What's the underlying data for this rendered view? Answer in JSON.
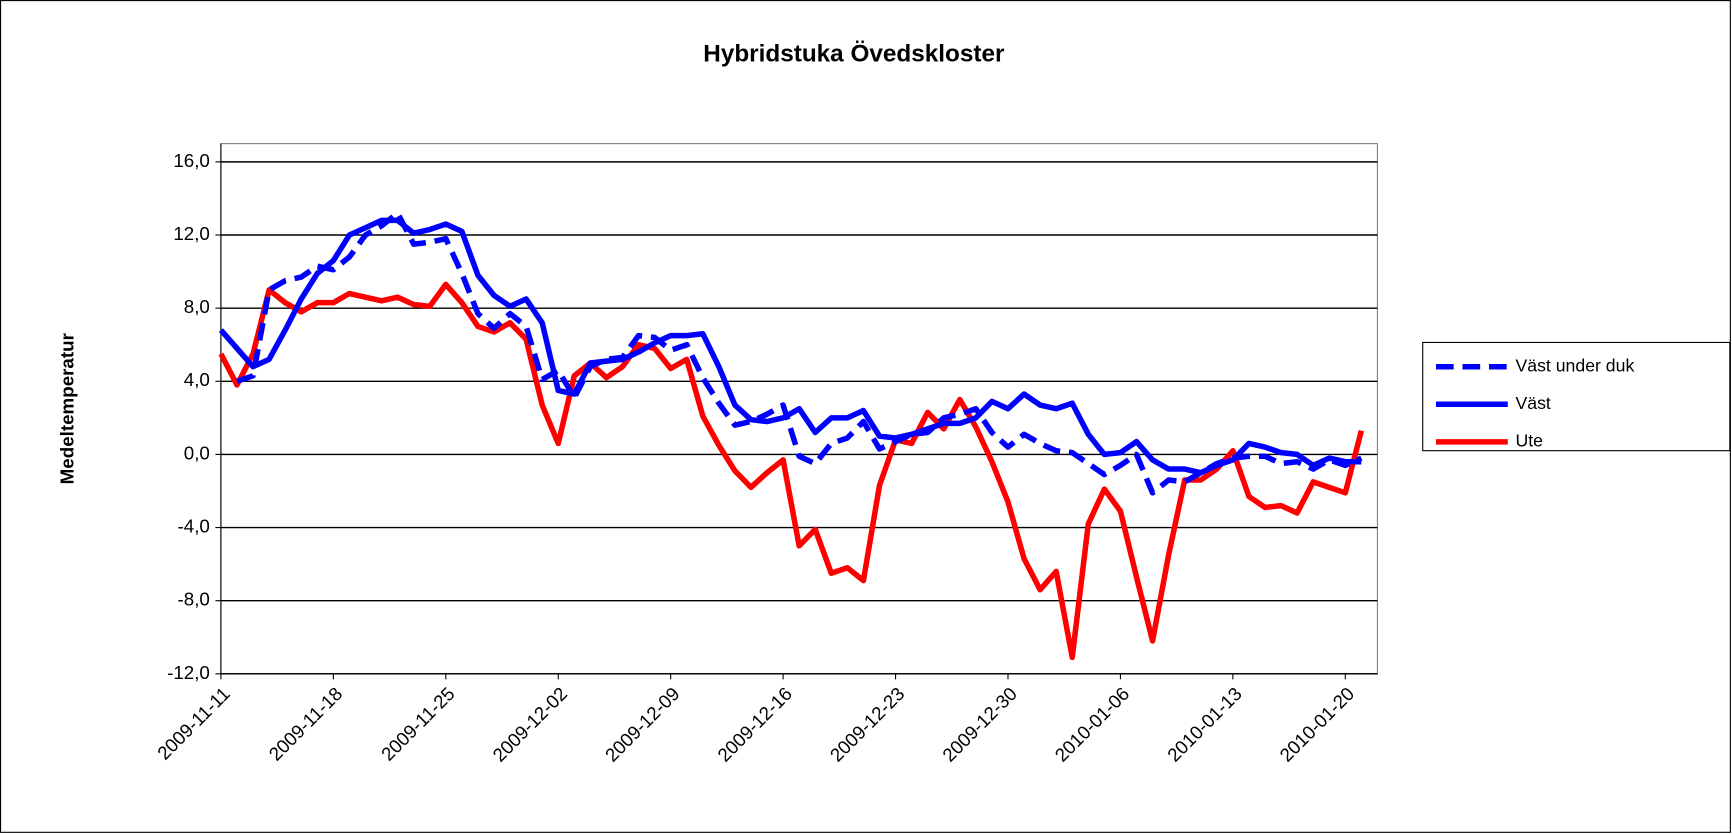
{
  "chart_data": {
    "type": "line",
    "title": "Hybridstuka Övedskloster",
    "y_label": "Medeltemperatur",
    "x": [
      "2009-11-11",
      "2009-11-12",
      "2009-11-13",
      "2009-11-14",
      "2009-11-15",
      "2009-11-16",
      "2009-11-17",
      "2009-11-18",
      "2009-11-19",
      "2009-11-20",
      "2009-11-21",
      "2009-11-22",
      "2009-11-23",
      "2009-11-24",
      "2009-11-25",
      "2009-11-26",
      "2009-11-27",
      "2009-11-28",
      "2009-11-29",
      "2009-11-30",
      "2009-12-01",
      "2009-12-02",
      "2009-12-03",
      "2009-12-04",
      "2009-12-05",
      "2009-12-06",
      "2009-12-07",
      "2009-12-08",
      "2009-12-09",
      "2009-12-10",
      "2009-12-11",
      "2009-12-12",
      "2009-12-13",
      "2009-12-14",
      "2009-12-15",
      "2009-12-16",
      "2009-12-17",
      "2009-12-18",
      "2009-12-19",
      "2009-12-20",
      "2009-12-21",
      "2009-12-22",
      "2009-12-23",
      "2009-12-24",
      "2009-12-25",
      "2009-12-26",
      "2009-12-27",
      "2009-12-28",
      "2009-12-29",
      "2009-12-30",
      "2009-12-31",
      "2010-01-01",
      "2010-01-02",
      "2010-01-03",
      "2010-01-04",
      "2010-01-05",
      "2010-01-06",
      "2010-01-07",
      "2010-01-08",
      "2010-01-09",
      "2010-01-10",
      "2010-01-11",
      "2010-01-12",
      "2010-01-13",
      "2010-01-14",
      "2010-01-15",
      "2010-01-16",
      "2010-01-17",
      "2010-01-18",
      "2010-01-19",
      "2010-01-20",
      "2010-01-21"
    ],
    "xlim": [
      "2009-11-11",
      "2010-01-22"
    ],
    "xticks": [
      "2009-11-11",
      "2009-11-18",
      "2009-11-25",
      "2009-12-02",
      "2009-12-09",
      "2009-12-16",
      "2009-12-23",
      "2009-12-30",
      "2010-01-06",
      "2010-01-13",
      "2010-01-20"
    ],
    "ylim": [
      -12,
      17
    ],
    "yticks": [
      {
        "value": -12,
        "label": "-12,0"
      },
      {
        "value": -8,
        "label": "-8,0"
      },
      {
        "value": -4,
        "label": "-4,0"
      },
      {
        "value": 0,
        "label": "0,0"
      },
      {
        "value": 4,
        "label": "4,0"
      },
      {
        "value": 8,
        "label": "8,0"
      },
      {
        "value": 12,
        "label": "12,0"
      },
      {
        "value": 16,
        "label": "16,0"
      }
    ],
    "grid": true,
    "legend": "right",
    "series": [
      {
        "name": "Väst under duk",
        "color": "#0000ff",
        "line_style": "dashed",
        "values": [
          null,
          4.0,
          4.3,
          9.0,
          9.5,
          9.7,
          10.3,
          10.1,
          10.8,
          12.0,
          12.5,
          13.2,
          11.5,
          11.6,
          11.8,
          9.9,
          7.7,
          6.9,
          7.7,
          7.0,
          4.1,
          4.6,
          3.1,
          4.8,
          5.2,
          5.3,
          6.5,
          6.4,
          5.7,
          6.0,
          4.2,
          2.8,
          1.6,
          1.8,
          2.2,
          2.7,
          -0.1,
          -0.5,
          0.6,
          0.9,
          1.8,
          0.3,
          0.7,
          1.1,
          1.2,
          2.0,
          2.2,
          2.5,
          1.2,
          0.4,
          1.1,
          0.6,
          0.2,
          0.1,
          -0.5,
          -1.1,
          -0.6,
          0.0,
          -2.1,
          -1.4,
          -1.5,
          -1.0,
          -0.5,
          -0.2,
          -0.1,
          -0.1,
          -0.5,
          -0.4,
          -0.8,
          -0.3,
          -0.6,
          -0.2
        ]
      },
      {
        "name": "Väst",
        "color": "#0000ff",
        "line_style": "solid",
        "values": [
          6.8,
          5.8,
          4.8,
          5.2,
          6.8,
          8.5,
          9.9,
          10.6,
          12.0,
          12.4,
          12.8,
          12.8,
          12.1,
          12.3,
          12.6,
          12.2,
          9.8,
          8.7,
          8.1,
          8.5,
          7.2,
          3.5,
          3.3,
          5.0,
          5.1,
          5.2,
          5.6,
          6.1,
          6.5,
          6.5,
          6.6,
          4.8,
          2.7,
          1.9,
          1.8,
          2.0,
          2.5,
          1.2,
          2.0,
          2.0,
          2.4,
          1.0,
          0.9,
          1.1,
          1.4,
          1.7,
          1.7,
          2.0,
          2.9,
          2.5,
          3.3,
          2.7,
          2.5,
          2.8,
          1.1,
          0.0,
          0.1,
          0.7,
          -0.3,
          -0.8,
          -0.8,
          -1.0,
          -0.6,
          -0.3,
          0.6,
          0.4,
          0.1,
          0.0,
          -0.6,
          -0.2,
          -0.4,
          -0.4
        ]
      },
      {
        "name": "Ute",
        "color": "#ff0000",
        "line_style": "solid",
        "values": [
          5.5,
          3.8,
          5.5,
          9.0,
          8.3,
          7.8,
          8.3,
          8.3,
          8.8,
          8.6,
          8.4,
          8.6,
          8.2,
          8.1,
          9.3,
          8.3,
          7.0,
          6.7,
          7.2,
          6.3,
          2.7,
          0.6,
          4.3,
          5.0,
          4.2,
          4.8,
          6.0,
          5.8,
          4.7,
          5.2,
          2.1,
          0.5,
          -0.9,
          -1.8,
          -1.0,
          -0.3,
          -5.0,
          -4.1,
          -6.5,
          -6.2,
          -6.9,
          -1.7,
          0.8,
          0.6,
          2.3,
          1.4,
          3.0,
          1.5,
          -0.4,
          -2.6,
          -5.7,
          -7.4,
          -6.4,
          -11.1,
          -3.8,
          -1.9,
          -3.1,
          -6.7,
          -10.2,
          -5.5,
          -1.4,
          -1.4,
          -0.8,
          0.2,
          -2.3,
          -2.9,
          -2.8,
          -3.2,
          -1.5,
          -1.8,
          -2.1,
          1.3
        ]
      }
    ]
  }
}
